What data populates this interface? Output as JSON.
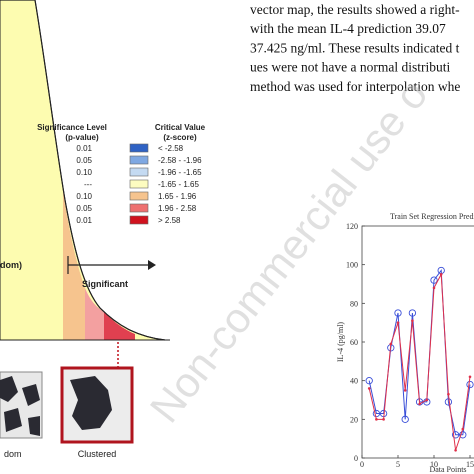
{
  "text": {
    "lines": [
      "vector map, the results showed a right-",
      "with the mean IL-4 prediction 39.07",
      "37.425 ng/ml. These results indicated t",
      "ues were not have a normal distributi",
      "method was used for interpolation whe"
    ]
  },
  "figure_left": {
    "legend": {
      "p_header": "Significance Level",
      "p_sub": "(p-value)",
      "z_header": "Critical Value",
      "z_sub": "(z-score)",
      "rows": [
        {
          "p": "0.01",
          "z": "< -2.58",
          "color": "#2f62c4"
        },
        {
          "p": "0.05",
          "z": "-2.58 - -1.96",
          "color": "#7fa8e2"
        },
        {
          "p": "0.10",
          "z": "-1.96 - -1.65",
          "color": "#c4daf2"
        },
        {
          "p": "---",
          "z": "-1.65 - 1.65",
          "color": "#fdfcc0"
        },
        {
          "p": "0.10",
          "z": "1.65 - 1.96",
          "color": "#f6c48e"
        },
        {
          "p": "0.05",
          "z": "1.96 - 2.58",
          "color": "#ee7070"
        },
        {
          "p": "0.01",
          "z": "> 2.58",
          "color": "#d0121e"
        }
      ]
    },
    "curve_label": "dom)",
    "significant": "Significant",
    "map_label_random": "dom",
    "map_label_clustered": "Clustered"
  },
  "watermark": "Non-commercial use o",
  "chart_data": {
    "type": "line",
    "title": "Train Set Regression Predi",
    "y_label": "IL-4 (pg/ml)",
    "x_label": "Data Points",
    "x": [
      1,
      2,
      3,
      4,
      5,
      6,
      7,
      8,
      9,
      10,
      11,
      12,
      13,
      14,
      15
    ],
    "series": [
      {
        "color": "#3a4fd8",
        "marker": "circle",
        "values": [
          40,
          23,
          23,
          57,
          75,
          20,
          75,
          29,
          29,
          92,
          97,
          29,
          12,
          12,
          38
        ]
      },
      {
        "color": "#e0304a",
        "marker": "dot",
        "values": [
          36,
          20,
          20,
          59,
          70,
          35,
          71,
          28,
          30,
          88,
          95,
          33,
          4,
          15,
          42
        ]
      }
    ],
    "xlim": [
      0,
      15
    ],
    "xticks": [
      0,
      5,
      10,
      15
    ],
    "ylim": [
      0,
      120
    ],
    "yticks": [
      0,
      20,
      40,
      60,
      80,
      100,
      120
    ]
  }
}
